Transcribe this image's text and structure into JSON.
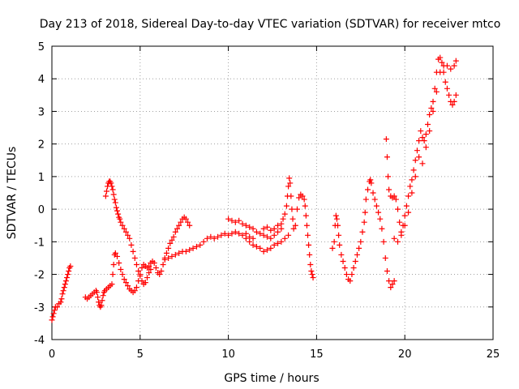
{
  "chart_data": {
    "type": "scatter",
    "title": "Day 213 of 2018, Sidereal Day-to-day VTEC variation (SDTVAR) for receiver mtco",
    "xlabel": "GPS time / hours",
    "ylabel": "SDTVAR / TECUs",
    "xlim": [
      0,
      25
    ],
    "ylim": [
      -4,
      5
    ],
    "xticks": [
      0,
      5,
      10,
      15,
      20,
      25
    ],
    "yticks": [
      -4,
      -3,
      -2,
      -1,
      0,
      1,
      2,
      3,
      4,
      5
    ],
    "grid": true,
    "marker": "+",
    "color": "#ff0000",
    "series": [
      {
        "name": "mtco",
        "points": [
          [
            0.0,
            -3.4
          ],
          [
            0.05,
            -3.3
          ],
          [
            0.1,
            -3.2
          ],
          [
            0.15,
            -3.1
          ],
          [
            0.2,
            -3.0
          ],
          [
            0.3,
            -3.0
          ],
          [
            0.4,
            -2.9
          ],
          [
            0.5,
            -2.85
          ],
          [
            0.55,
            -2.75
          ],
          [
            0.6,
            -2.6
          ],
          [
            0.65,
            -2.5
          ],
          [
            0.7,
            -2.4
          ],
          [
            0.75,
            -2.3
          ],
          [
            0.8,
            -2.2
          ],
          [
            0.85,
            -2.1
          ],
          [
            0.9,
            -2.0
          ],
          [
            0.95,
            -1.9
          ],
          [
            1.0,
            -1.8
          ],
          [
            1.05,
            -1.75
          ],
          [
            1.9,
            -2.7
          ],
          [
            2.0,
            -2.75
          ],
          [
            2.1,
            -2.7
          ],
          [
            2.2,
            -2.65
          ],
          [
            2.3,
            -2.6
          ],
          [
            2.4,
            -2.55
          ],
          [
            2.5,
            -2.5
          ],
          [
            2.55,
            -2.55
          ],
          [
            2.6,
            -2.7
          ],
          [
            2.65,
            -2.85
          ],
          [
            2.7,
            -2.95
          ],
          [
            2.75,
            -3.0
          ],
          [
            2.8,
            -2.95
          ],
          [
            2.85,
            -2.8
          ],
          [
            2.9,
            -2.65
          ],
          [
            2.95,
            -2.55
          ],
          [
            3.0,
            -2.5
          ],
          [
            3.1,
            -2.45
          ],
          [
            3.2,
            -2.4
          ],
          [
            3.3,
            -2.35
          ],
          [
            3.4,
            -2.3
          ],
          [
            3.45,
            -2.0
          ],
          [
            3.5,
            -1.7
          ],
          [
            3.55,
            -1.4
          ],
          [
            3.6,
            -1.35
          ],
          [
            3.7,
            -1.45
          ],
          [
            3.8,
            -1.65
          ],
          [
            3.9,
            -1.85
          ],
          [
            4.0,
            -2.0
          ],
          [
            4.1,
            -2.15
          ],
          [
            4.2,
            -2.25
          ],
          [
            4.3,
            -2.35
          ],
          [
            4.4,
            -2.45
          ],
          [
            4.5,
            -2.5
          ],
          [
            4.6,
            -2.55
          ],
          [
            4.7,
            -2.5
          ],
          [
            4.8,
            -2.4
          ],
          [
            4.9,
            -2.2
          ],
          [
            5.0,
            -2.0
          ],
          [
            5.1,
            -1.8
          ],
          [
            5.2,
            -1.7
          ],
          [
            5.3,
            -1.75
          ],
          [
            5.4,
            -1.8
          ],
          [
            5.5,
            -1.75
          ],
          [
            5.6,
            -1.65
          ],
          [
            5.7,
            -1.6
          ],
          [
            5.8,
            -1.65
          ],
          [
            5.9,
            -1.8
          ],
          [
            6.0,
            -1.95
          ],
          [
            6.1,
            -2.0
          ],
          [
            3.05,
            0.4
          ],
          [
            3.1,
            0.55
          ],
          [
            3.15,
            0.7
          ],
          [
            3.2,
            0.8
          ],
          [
            3.25,
            0.85
          ],
          [
            3.3,
            0.85
          ],
          [
            3.35,
            0.8
          ],
          [
            3.4,
            0.7
          ],
          [
            3.45,
            0.6
          ],
          [
            3.5,
            0.45
          ],
          [
            3.55,
            0.3
          ],
          [
            3.6,
            0.2
          ],
          [
            3.65,
            0.05
          ],
          [
            3.7,
            -0.05
          ],
          [
            3.75,
            -0.15
          ],
          [
            3.8,
            -0.25
          ],
          [
            3.85,
            -0.3
          ],
          [
            3.9,
            -0.4
          ],
          [
            4.0,
            -0.5
          ],
          [
            4.1,
            -0.6
          ],
          [
            4.2,
            -0.7
          ],
          [
            4.3,
            -0.8
          ],
          [
            4.4,
            -0.9
          ],
          [
            4.5,
            -1.1
          ],
          [
            4.6,
            -1.3
          ],
          [
            4.7,
            -1.5
          ],
          [
            4.8,
            -1.7
          ],
          [
            4.9,
            -1.9
          ],
          [
            5.0,
            -2.05
          ],
          [
            5.1,
            -2.2
          ],
          [
            5.2,
            -2.3
          ],
          [
            5.3,
            -2.25
          ],
          [
            5.4,
            -2.1
          ],
          [
            5.5,
            -1.95
          ],
          [
            5.6,
            -1.85
          ],
          [
            6.2,
            -1.9
          ],
          [
            6.3,
            -1.7
          ],
          [
            6.4,
            -1.5
          ],
          [
            6.5,
            -1.35
          ],
          [
            6.6,
            -1.2
          ],
          [
            6.7,
            -1.05
          ],
          [
            6.8,
            -0.95
          ],
          [
            6.9,
            -0.85
          ],
          [
            7.0,
            -0.7
          ],
          [
            7.1,
            -0.6
          ],
          [
            7.2,
            -0.5
          ],
          [
            7.3,
            -0.4
          ],
          [
            7.4,
            -0.3
          ],
          [
            7.5,
            -0.25
          ],
          [
            7.6,
            -0.3
          ],
          [
            7.7,
            -0.4
          ],
          [
            7.8,
            -0.5
          ],
          [
            6.4,
            -1.55
          ],
          [
            6.6,
            -1.5
          ],
          [
            6.8,
            -1.45
          ],
          [
            7.0,
            -1.4
          ],
          [
            7.2,
            -1.35
          ],
          [
            7.4,
            -1.3
          ],
          [
            7.6,
            -1.3
          ],
          [
            7.8,
            -1.25
          ],
          [
            8.0,
            -1.2
          ],
          [
            8.2,
            -1.15
          ],
          [
            8.4,
            -1.1
          ],
          [
            8.6,
            -1.0
          ],
          [
            8.8,
            -0.9
          ],
          [
            9.0,
            -0.85
          ],
          [
            9.2,
            -0.9
          ],
          [
            9.4,
            -0.85
          ],
          [
            9.6,
            -0.8
          ],
          [
            9.8,
            -0.75
          ],
          [
            10.0,
            -0.8
          ],
          [
            10.2,
            -0.75
          ],
          [
            10.4,
            -0.7
          ],
          [
            10.6,
            -0.75
          ],
          [
            10.8,
            -0.8
          ],
          [
            11.0,
            -0.75
          ],
          [
            11.2,
            -0.85
          ],
          [
            11.4,
            -0.9
          ],
          [
            10.0,
            -0.3
          ],
          [
            10.2,
            -0.35
          ],
          [
            10.4,
            -0.4
          ],
          [
            10.6,
            -0.35
          ],
          [
            10.8,
            -0.45
          ],
          [
            11.0,
            -0.5
          ],
          [
            11.2,
            -0.55
          ],
          [
            11.4,
            -0.6
          ],
          [
            11.6,
            -0.7
          ],
          [
            11.8,
            -0.75
          ],
          [
            12.0,
            -0.8
          ],
          [
            12.2,
            -0.85
          ],
          [
            12.4,
            -0.9
          ],
          [
            12.6,
            -0.8
          ],
          [
            12.8,
            -0.7
          ],
          [
            13.0,
            -0.6
          ],
          [
            11.0,
            -0.9
          ],
          [
            11.2,
            -1.0
          ],
          [
            11.4,
            -1.1
          ],
          [
            11.6,
            -1.15
          ],
          [
            11.8,
            -1.2
          ],
          [
            12.0,
            -1.3
          ],
          [
            12.2,
            -1.25
          ],
          [
            12.4,
            -1.2
          ],
          [
            12.6,
            -1.1
          ],
          [
            12.8,
            -1.05
          ],
          [
            13.0,
            -1.0
          ],
          [
            13.2,
            -0.9
          ],
          [
            13.4,
            -0.8
          ],
          [
            12.0,
            -0.6
          ],
          [
            12.2,
            -0.55
          ],
          [
            12.4,
            -0.65
          ],
          [
            12.6,
            -0.6
          ],
          [
            12.8,
            -0.5
          ],
          [
            13.0,
            -0.45
          ],
          [
            13.1,
            -0.3
          ],
          [
            13.2,
            -0.15
          ],
          [
            13.3,
            0.1
          ],
          [
            13.35,
            0.4
          ],
          [
            13.4,
            0.7
          ],
          [
            13.45,
            0.95
          ],
          [
            13.5,
            0.8
          ],
          [
            13.55,
            0.4
          ],
          [
            13.6,
            0.0
          ],
          [
            13.65,
            -0.3
          ],
          [
            13.7,
            -0.6
          ],
          [
            13.8,
            -0.5
          ],
          [
            13.9,
            0.0
          ],
          [
            14.0,
            0.35
          ],
          [
            14.1,
            0.45
          ],
          [
            14.2,
            0.4
          ],
          [
            14.3,
            0.3
          ],
          [
            14.35,
            0.1
          ],
          [
            14.4,
            -0.2
          ],
          [
            14.45,
            -0.5
          ],
          [
            14.5,
            -0.8
          ],
          [
            14.55,
            -1.1
          ],
          [
            14.6,
            -1.4
          ],
          [
            14.65,
            -1.7
          ],
          [
            14.7,
            -1.9
          ],
          [
            14.75,
            -2.0
          ],
          [
            14.8,
            -2.1
          ],
          [
            15.9,
            -1.2
          ],
          [
            16.0,
            -1.0
          ],
          [
            16.05,
            -0.5
          ],
          [
            16.1,
            -0.2
          ],
          [
            16.15,
            -0.3
          ],
          [
            16.2,
            -0.5
          ],
          [
            16.25,
            -0.8
          ],
          [
            16.3,
            -1.1
          ],
          [
            16.4,
            -1.4
          ],
          [
            16.5,
            -1.6
          ],
          [
            16.6,
            -1.8
          ],
          [
            16.7,
            -2.0
          ],
          [
            16.8,
            -2.15
          ],
          [
            16.9,
            -2.2
          ],
          [
            17.0,
            -2.0
          ],
          [
            17.1,
            -1.8
          ],
          [
            17.2,
            -1.6
          ],
          [
            17.3,
            -1.4
          ],
          [
            17.4,
            -1.2
          ],
          [
            17.5,
            -1.0
          ],
          [
            17.6,
            -0.7
          ],
          [
            17.7,
            -0.4
          ],
          [
            17.75,
            -0.1
          ],
          [
            17.8,
            0.3
          ],
          [
            17.9,
            0.6
          ],
          [
            18.0,
            0.85
          ],
          [
            18.05,
            0.9
          ],
          [
            18.1,
            0.8
          ],
          [
            18.2,
            0.5
          ],
          [
            18.3,
            0.3
          ],
          [
            18.4,
            0.1
          ],
          [
            18.5,
            -0.1
          ],
          [
            18.6,
            -0.3
          ],
          [
            18.7,
            -0.6
          ],
          [
            18.8,
            -1.0
          ],
          [
            18.9,
            -1.5
          ],
          [
            19.0,
            -1.9
          ],
          [
            19.1,
            -2.2
          ],
          [
            19.2,
            -2.4
          ],
          [
            19.3,
            -2.3
          ],
          [
            19.4,
            -2.2
          ],
          [
            18.95,
            2.15
          ],
          [
            19.0,
            1.6
          ],
          [
            19.05,
            1.0
          ],
          [
            19.1,
            0.6
          ],
          [
            19.2,
            0.4
          ],
          [
            19.3,
            0.35
          ],
          [
            19.4,
            0.4
          ],
          [
            19.5,
            0.3
          ],
          [
            19.6,
            0.0
          ],
          [
            19.7,
            -0.4
          ],
          [
            19.8,
            -0.7
          ],
          [
            19.9,
            -0.5
          ],
          [
            20.0,
            -0.2
          ],
          [
            20.1,
            0.1
          ],
          [
            20.2,
            0.4
          ],
          [
            20.3,
            0.7
          ],
          [
            20.4,
            0.9
          ],
          [
            20.5,
            1.2
          ],
          [
            20.6,
            1.5
          ],
          [
            20.7,
            1.8
          ],
          [
            20.8,
            2.1
          ],
          [
            20.9,
            2.4
          ],
          [
            21.0,
            2.2
          ],
          [
            21.1,
            2.1
          ],
          [
            21.2,
            2.3
          ],
          [
            21.3,
            2.6
          ],
          [
            21.4,
            2.9
          ],
          [
            21.5,
            3.1
          ],
          [
            21.6,
            3.3
          ],
          [
            21.7,
            3.7
          ],
          [
            21.8,
            4.2
          ],
          [
            21.9,
            4.6
          ],
          [
            22.0,
            4.65
          ],
          [
            22.1,
            4.5
          ],
          [
            22.2,
            4.2
          ],
          [
            22.3,
            3.9
          ],
          [
            22.4,
            3.7
          ],
          [
            22.5,
            3.5
          ],
          [
            22.6,
            3.3
          ],
          [
            22.7,
            3.2
          ],
          [
            22.8,
            3.3
          ],
          [
            22.9,
            3.5
          ],
          [
            19.4,
            -0.9
          ],
          [
            19.6,
            -1.0
          ],
          [
            19.8,
            -0.8
          ],
          [
            20.0,
            -0.5
          ],
          [
            20.2,
            -0.1
          ],
          [
            20.4,
            0.5
          ],
          [
            20.6,
            1.0
          ],
          [
            20.8,
            1.6
          ],
          [
            21.0,
            1.4
          ],
          [
            21.2,
            1.9
          ],
          [
            21.4,
            2.4
          ],
          [
            21.6,
            3.0
          ],
          [
            21.8,
            3.6
          ],
          [
            22.0,
            4.2
          ],
          [
            22.2,
            4.4
          ],
          [
            22.4,
            4.4
          ],
          [
            22.6,
            4.3
          ],
          [
            22.8,
            4.4
          ],
          [
            22.9,
            4.55
          ]
        ]
      }
    ]
  }
}
